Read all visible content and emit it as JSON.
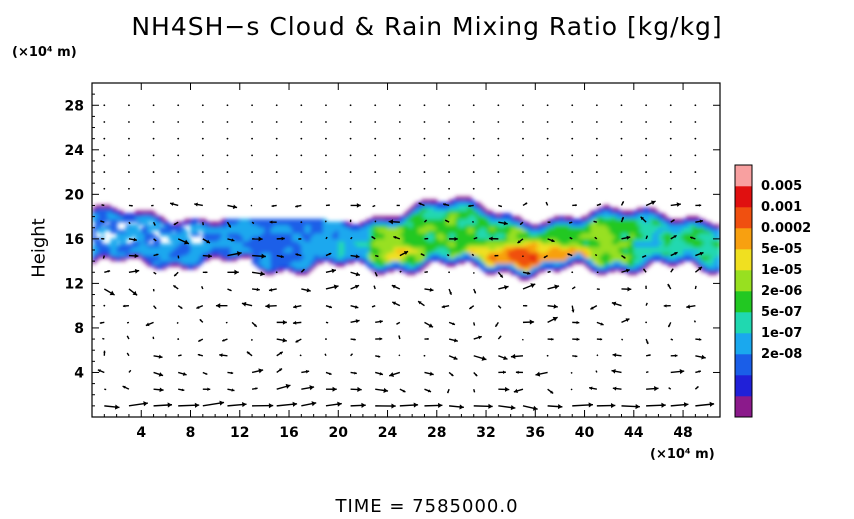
{
  "chart_data": {
    "type": "heatmap",
    "title": "NH4SH−s Cloud & Rain Mixing Ratio [kg/kg]",
    "xlabel": "",
    "ylabel": "Height",
    "x_unit": "(×10⁴ m)",
    "y_unit": "(×10⁴ m)",
    "footer": "TIME  =  7585000.0",
    "xlim": [
      0,
      51
    ],
    "ylim": [
      0,
      30
    ],
    "x_ticks": [
      4,
      8,
      12,
      16,
      20,
      24,
      28,
      32,
      36,
      40,
      44,
      48
    ],
    "y_ticks": [
      4,
      8,
      12,
      16,
      20,
      24,
      28
    ],
    "colorbar": {
      "labels": [
        "0.005",
        "0.001",
        "0.0002",
        "5e-05",
        "1e-05",
        "2e-06",
        "5e-07",
        "1e-07",
        "2e-08"
      ],
      "colors": [
        "#8b1a8b",
        "#2020d8",
        "#1a5ee8",
        "#1aa8ee",
        "#20d8b0",
        "#22c822",
        "#98e020",
        "#f0e020",
        "#f8a010",
        "#f05010",
        "#e01010",
        "#f8a0a0"
      ]
    },
    "grid": false,
    "overlay": "wind vectors"
  }
}
